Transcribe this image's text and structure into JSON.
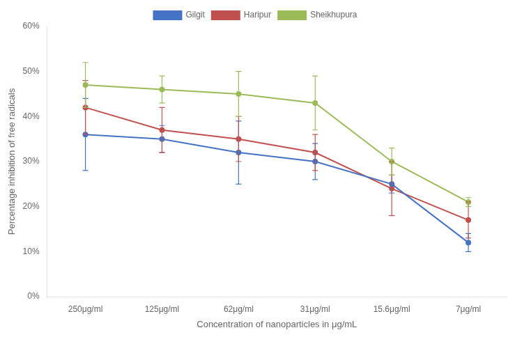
{
  "chart_data": {
    "type": "line",
    "categories": [
      "250μg/ml",
      "125μg/ml",
      "62μg/ml",
      "31μg/ml",
      "15.6μg/ml",
      "7μg/ml"
    ],
    "series": [
      {
        "name": "Gilgit",
        "color": "#4472C4",
        "values": [
          36,
          35,
          32,
          30,
          25,
          12
        ],
        "yerr": [
          8,
          3,
          7,
          4,
          2,
          2
        ]
      },
      {
        "name": "Haripur",
        "color": "#C0504D",
        "values": [
          42,
          37,
          35,
          32,
          24,
          17
        ],
        "yerr": [
          6,
          5,
          5,
          4,
          6,
          4
        ]
      },
      {
        "name": "Sheikhupura",
        "color": "#9BBB59",
        "values": [
          47,
          46,
          45,
          43,
          30,
          21
        ],
        "yerr": [
          5,
          3,
          5,
          6,
          3,
          1
        ]
      }
    ],
    "xlabel": "Concentration of nanoparticles in μg/mL",
    "ylabel": "Percentage inhibition of free radicals",
    "ylim": [
      0,
      60
    ],
    "yticks": [
      {
        "value": 0,
        "label": "0%"
      },
      {
        "value": 10,
        "label": "10%"
      },
      {
        "value": 20,
        "label": "20%"
      },
      {
        "value": 30,
        "label": "30%"
      },
      {
        "value": 40,
        "label": "40%"
      },
      {
        "value": 50,
        "label": "50%"
      },
      {
        "value": 60,
        "label": "60%"
      }
    ],
    "grid": false,
    "legend": "top",
    "marker": "circle",
    "line_style": "solid"
  }
}
